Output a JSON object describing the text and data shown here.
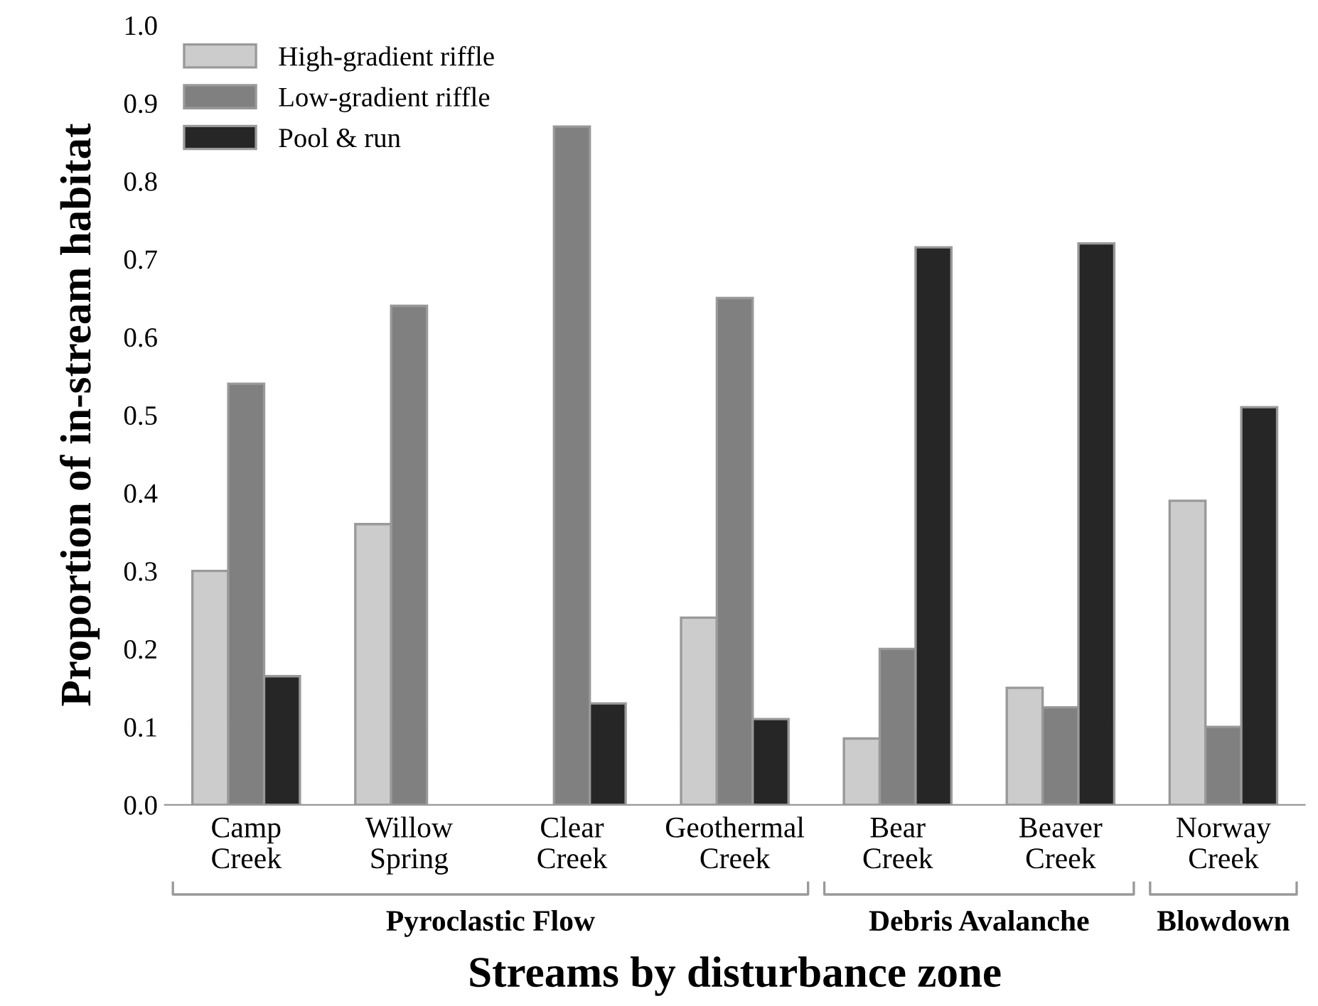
{
  "chart_data": {
    "type": "bar",
    "ylabel": "Proportion of in-stream habitat",
    "xlabel": "Streams by disturbance zone",
    "categories": [
      "Camp\nCreek",
      "Willow\nSpring",
      "Clear\nCreek",
      "Geothermal\nCreek",
      "Bear\nCreek",
      "Beaver\nCreek",
      "Norway\nCreek"
    ],
    "series": [
      {
        "name": "High-gradient riffle",
        "color": "#cccccc",
        "values": [
          0.3,
          0.36,
          null,
          0.24,
          0.085,
          0.15,
          0.39
        ]
      },
      {
        "name": "Low-gradient riffle",
        "color": "#808080",
        "values": [
          0.54,
          0.64,
          0.87,
          0.65,
          0.2,
          0.125,
          0.1
        ]
      },
      {
        "name": "Pool & run",
        "color": "#262626",
        "values": [
          0.165,
          null,
          0.13,
          0.11,
          0.715,
          0.72,
          0.51
        ]
      }
    ],
    "annotations": [
      "Pyroclastic Flow",
      "Debris Avalanche",
      "Blowdown"
    ],
    "ylim": [
      0,
      1.0
    ],
    "yticks": [
      {
        "value": 0,
        "label": "0.0"
      },
      {
        "value": 0.1,
        "label": "0.1"
      },
      {
        "value": 0.2,
        "label": "0.2"
      },
      {
        "value": 0.3,
        "label": "0.3"
      },
      {
        "value": 0.4,
        "label": "0.4"
      },
      {
        "value": 0.5,
        "label": "0.5"
      },
      {
        "value": 0.6,
        "label": "0.6"
      },
      {
        "value": 0.7,
        "label": "0.7"
      },
      {
        "value": 0.8,
        "label": "0.8"
      },
      {
        "value": 0.9,
        "label": "0.9"
      },
      {
        "value": 1.0,
        "label": "1.0"
      }
    ],
    "grid": false,
    "legend": "top left"
  }
}
